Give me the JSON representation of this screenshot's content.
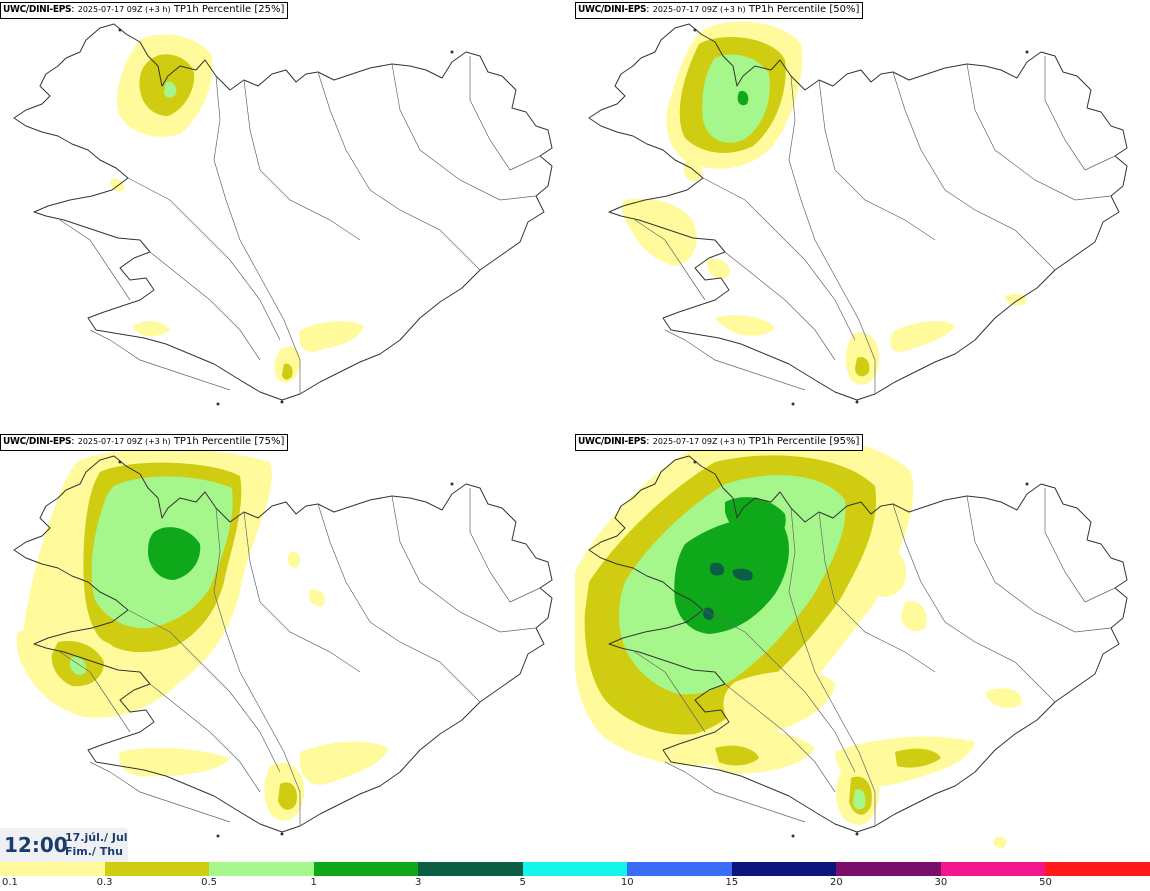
{
  "panels": [
    {
      "model": "UWC/DINI-EPS",
      "run": "2025-07-17 09Z (+3 h)",
      "title": "TP1h Percentile [25%]"
    },
    {
      "model": "UWC/DINI-EPS",
      "run": "2025-07-17 09Z (+3 h)",
      "title": "TP1h Percentile [50%]"
    },
    {
      "model": "UWC/DINI-EPS",
      "run": "2025-07-17 09Z (+3 h)",
      "title": "TP1h Percentile [75%]"
    },
    {
      "model": "UWC/DINI-EPS",
      "run": "2025-07-17 09Z (+3 h)",
      "title": "TP1h Percentile [95%]"
    }
  ],
  "time": {
    "hour": "12:00",
    "date_line1": "17.júl./ Jul",
    "date_line2": "Fim./ Thu"
  },
  "colorbar": {
    "labels": [
      "0.1",
      "0.3",
      "0.5",
      "1",
      "3",
      "5",
      "10",
      "15",
      "20",
      "30",
      "50"
    ],
    "colors": [
      "#fffb9c",
      "#cfcc12",
      "#a6f78b",
      "#0fa81a",
      "#0b5e44",
      "#12f5ea",
      "#3b6cf5",
      "#0c157a",
      "#7a0e6c",
      "#f2158e",
      "#ff1a1a"
    ]
  }
}
